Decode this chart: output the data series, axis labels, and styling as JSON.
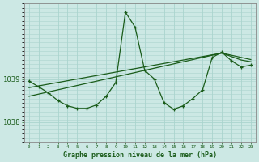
{
  "title": "Graphe pression niveau de la mer (hPa)",
  "bg_color": "#cce8e4",
  "grid_color": "#aad4ce",
  "line_color": "#1a5c1a",
  "x_min": -0.5,
  "x_max": 23.5,
  "y_min": 1037.55,
  "y_max": 1040.75,
  "ytick_vals": [
    1038,
    1039
  ],
  "xtick_vals": [
    0,
    1,
    2,
    3,
    4,
    5,
    6,
    7,
    8,
    9,
    10,
    11,
    12,
    13,
    14,
    15,
    16,
    17,
    18,
    19,
    20,
    21,
    22,
    23
  ],
  "main_y": [
    1038.95,
    1038.82,
    1038.68,
    1038.5,
    1038.38,
    1038.32,
    1038.32,
    1038.4,
    1038.6,
    1038.92,
    1040.55,
    1040.2,
    1039.2,
    1039.0,
    1038.45,
    1038.3,
    1038.38,
    1038.55,
    1038.75,
    1039.5,
    1039.62,
    1039.42,
    1039.28,
    1039.32
  ],
  "trend1_y": [
    1038.8,
    1038.84,
    1038.88,
    1038.92,
    1038.96,
    1039.0,
    1039.04,
    1039.08,
    1039.12,
    1039.16,
    1039.2,
    1039.24,
    1039.28,
    1039.32,
    1039.36,
    1039.4,
    1039.44,
    1039.48,
    1039.52,
    1039.56,
    1039.6,
    1039.52,
    1039.44,
    1039.4
  ],
  "trend2_y": [
    1038.6,
    1038.65,
    1038.7,
    1038.75,
    1038.8,
    1038.85,
    1038.9,
    1038.95,
    1039.0,
    1039.05,
    1039.1,
    1039.15,
    1039.2,
    1039.25,
    1039.3,
    1039.35,
    1039.4,
    1039.45,
    1039.5,
    1039.55,
    1039.6,
    1039.55,
    1039.5,
    1039.45
  ]
}
